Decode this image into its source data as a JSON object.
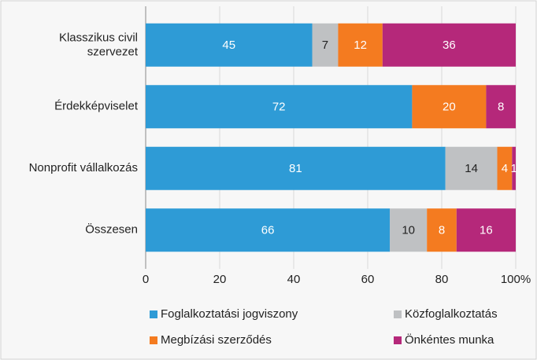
{
  "chart_data": {
    "type": "stacked_barh",
    "categories": [
      "Klasszikus civil szervezet",
      "Érdekképviselet",
      "Nonprofit vállalkozás",
      "Összesen"
    ],
    "series": [
      {
        "name": "Foglalkoztatási jogviszony",
        "color": "#2e9bd6",
        "values": [
          45,
          72,
          81,
          66
        ]
      },
      {
        "name": "Közfoglalkoztatás",
        "color": "#bfc1c3",
        "values": [
          7,
          null,
          14,
          10
        ]
      },
      {
        "name": "Megbízási szerződés",
        "color": "#f47b20",
        "values": [
          12,
          20,
          4,
          8
        ]
      },
      {
        "name": "Önkéntes munka",
        "color": "#b5287a",
        "values": [
          36,
          8,
          1,
          16
        ]
      }
    ],
    "xlim": [
      0,
      100
    ],
    "xticks": [
      0,
      20,
      40,
      60,
      80,
      {
        "value": 100,
        "label": "100%"
      }
    ],
    "grid": true,
    "legend": "bottom"
  }
}
